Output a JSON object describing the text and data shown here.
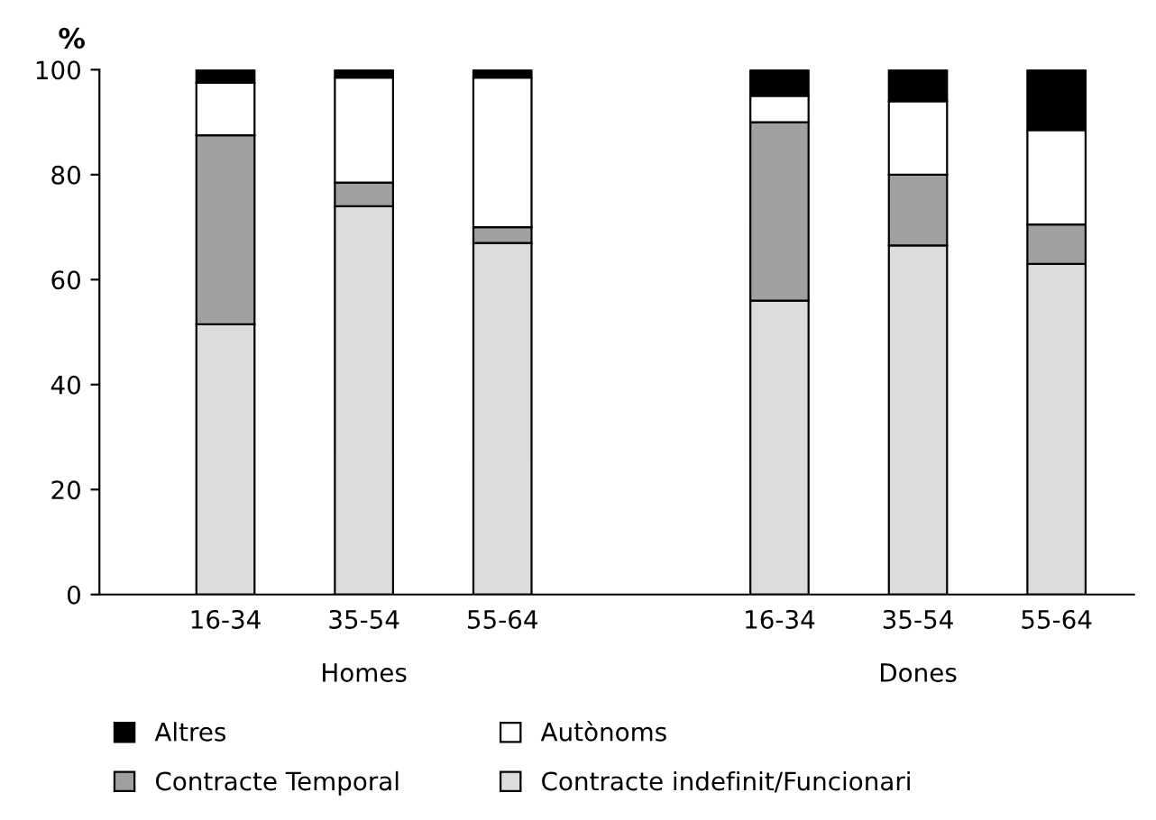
{
  "chart_data": {
    "type": "bar",
    "stacked": true,
    "ylabel": "%",
    "categories": [
      "16-34",
      "35-54",
      "55-64",
      "16-34",
      "35-54",
      "55-64"
    ],
    "series": [
      {
        "name": "Contracte indefinit/Funcionari",
        "color": "#dcdcdc",
        "values": [
          51.5,
          74,
          67,
          56,
          66.5,
          63
        ]
      },
      {
        "name": "Contracte Temporal",
        "color": "#a0a0a0",
        "values": [
          36,
          4.5,
          3,
          34,
          13.5,
          7.5
        ]
      },
      {
        "name": "Autònoms",
        "color": "#ffffff",
        "values": [
          10,
          20,
          28.5,
          5,
          14,
          18
        ]
      },
      {
        "name": "Altres",
        "color": "#000000",
        "values": [
          2.5,
          1.5,
          1.5,
          5,
          6,
          11.5
        ]
      }
    ],
    "annotations": [
      "Homes",
      "Dones"
    ],
    "ylim": [
      0,
      100
    ],
    "yticks": [
      0,
      20,
      40,
      60,
      80,
      100
    ],
    "grid": false,
    "legend": "bottom"
  }
}
